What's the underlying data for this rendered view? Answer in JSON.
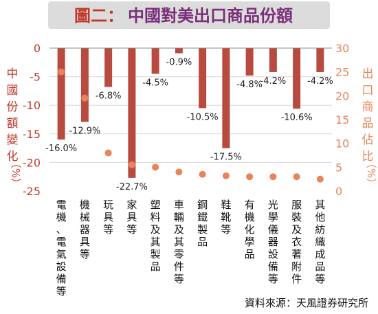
{
  "header": {
    "prefix": "圖二：",
    "title": "中國對美出口商品份額"
  },
  "source": "資料來源：天風證券研究所",
  "colors": {
    "bar": "#b94a40",
    "dot": "#e8845a",
    "left_axis": "#c0392b",
    "right_axis": "#e8845a",
    "title_prefix": "#c0392b",
    "title_main": "#7b2f7a",
    "title_band": "#dcdcdc"
  },
  "chart_data": {
    "type": "bar",
    "categories": [
      "電機、電氣設備等",
      "機械器具等",
      "玩具等",
      "家具等",
      "塑料及其製品",
      "車輛及其零件等",
      "鋼鐵製品",
      "鞋靴等",
      "有機化學品",
      "光學儀器設備等",
      "服裝及衣著附件",
      "其他紡織成品等"
    ],
    "series": [
      {
        "name": "中國份額變化",
        "type": "bar",
        "axis": "left",
        "values": [
          -16.0,
          -12.9,
          -6.8,
          -22.7,
          -4.5,
          -0.9,
          -10.5,
          -17.5,
          -4.8,
          -4.2,
          -10.6,
          -4.2
        ],
        "labels": [
          "-16.0%",
          "-12.9%",
          "-6.8%",
          "-22.7%",
          "-4.5%",
          "-0.9%",
          "-10.5%",
          "-17.5%",
          "-4.8%",
          "-4.2%",
          "-10.6%",
          "-4.2%"
        ]
      },
      {
        "name": "出口商品佔比",
        "type": "scatter",
        "axis": "right",
        "values": [
          25.0,
          19.5,
          8.0,
          5.5,
          5.0,
          4.0,
          3.5,
          3.2,
          3.0,
          3.0,
          3.0,
          2.5
        ]
      }
    ],
    "left_axis": {
      "label": "中國份額變化",
      "unit": "（%）",
      "ylim": [
        -25,
        0
      ],
      "ticks": [
        0,
        -5,
        -10,
        -15,
        -20,
        -25
      ],
      "tick_labels": [
        "0",
        "-5",
        "-10",
        "-15",
        "-20",
        "-25"
      ]
    },
    "right_axis": {
      "label": "出口商品佔比",
      "unit": "（%）",
      "ylim": [
        0,
        30
      ],
      "ticks": [
        30,
        25,
        20,
        15,
        10,
        5,
        0
      ],
      "tick_labels": [
        "30",
        "25",
        "20",
        "15",
        "10",
        "5",
        "0"
      ]
    },
    "grid": true
  }
}
